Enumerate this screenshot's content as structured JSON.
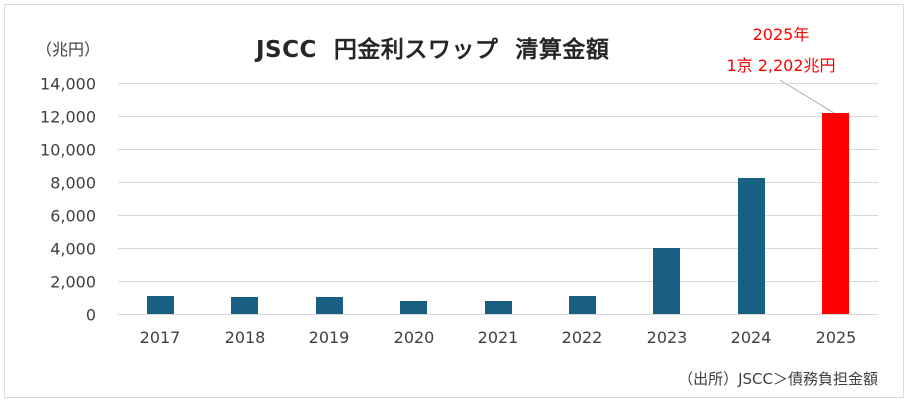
{
  "chart": {
    "title": "JSCC  円金利スワップ  清算金額",
    "unit_label": "（兆円）",
    "annotation_line1": "2025年",
    "annotation_line2": "1京 2,202兆円",
    "source": "（出所）JSCC＞債務負担金額",
    "colors": {
      "bar": "#185f82",
      "highlight": "#ff0000",
      "grid": "#d9d9d9",
      "annotation": "#ff0000"
    },
    "y_ticks": [
      "0",
      "2,000",
      "4,000",
      "6,000",
      "8,000",
      "10,000",
      "12,000",
      "14,000"
    ],
    "x_ticks": [
      "2017",
      "2018",
      "2019",
      "2020",
      "2021",
      "2022",
      "2023",
      "2024",
      "2025"
    ]
  },
  "chart_data": {
    "type": "bar",
    "title": "JSCC 円金利スワップ 清算金額",
    "xlabel": "",
    "ylabel": "（兆円）",
    "categories": [
      "2017",
      "2018",
      "2019",
      "2020",
      "2021",
      "2022",
      "2023",
      "2024",
      "2025"
    ],
    "values": [
      1090,
      1030,
      1030,
      790,
      790,
      1120,
      4000,
      8270,
      12202
    ],
    "ylim": [
      0,
      14000
    ],
    "yticks": [
      0,
      2000,
      4000,
      6000,
      8000,
      10000,
      12000,
      14000
    ],
    "grid": true,
    "legend": null,
    "highlight": {
      "category": "2025",
      "color": "#ff0000"
    },
    "annotations": [
      {
        "text": "2025年",
        "target": "2025"
      },
      {
        "text": "1京 2,202兆円",
        "target": "2025"
      }
    ],
    "source": "（出所）JSCC＞債務負担金額"
  }
}
